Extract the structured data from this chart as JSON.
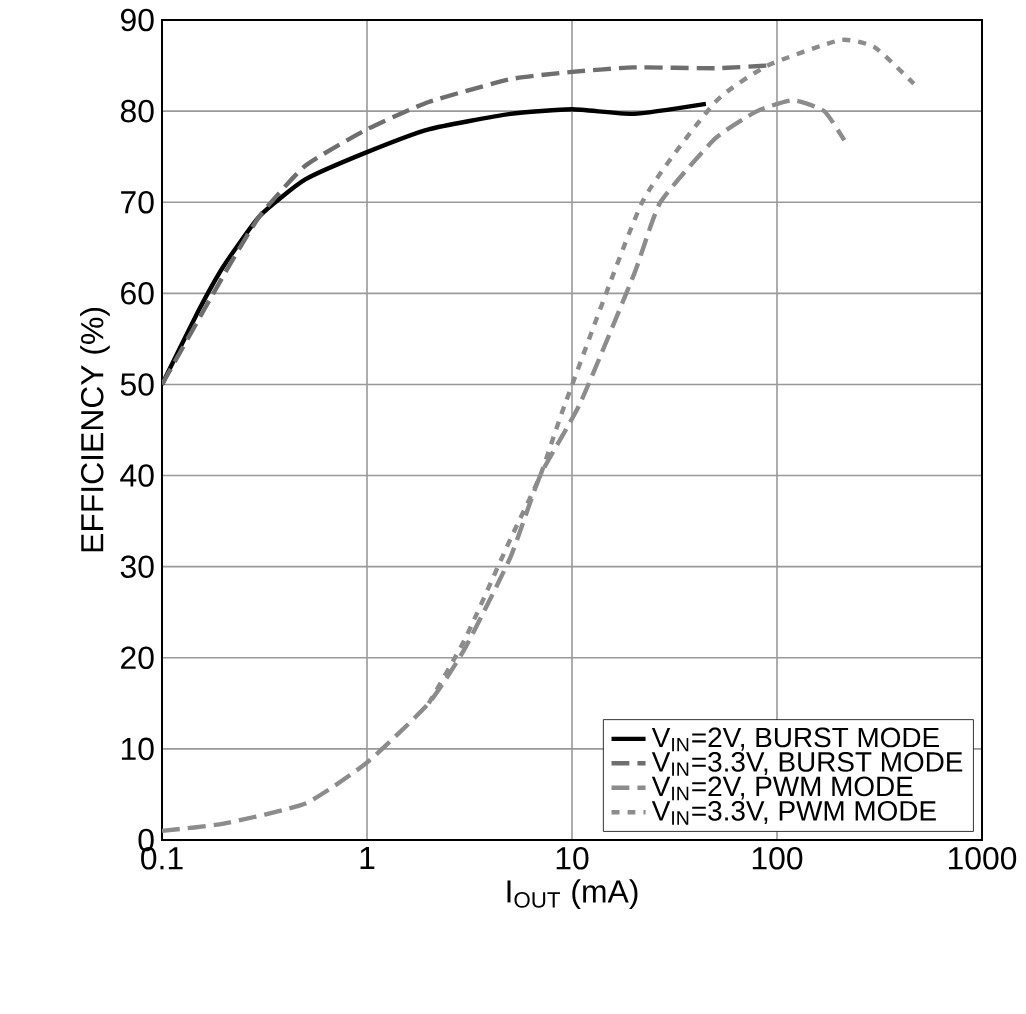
{
  "chart_data": {
    "type": "line",
    "xlabel": "I$_{OUT}$ (mA)",
    "ylabel": "EFFICIENCY (%)",
    "log": "x",
    "grid": true,
    "legend": "bottom right",
    "xlim": [
      0.1,
      1000
    ],
    "xticks": [
      0.1,
      1,
      10,
      100,
      1000
    ],
    "ylim": [
      0,
      90
    ],
    "yticks": [
      0,
      10,
      20,
      30,
      40,
      50,
      60,
      70,
      80,
      90
    ],
    "series": [
      {
        "name": "V$_{IN}$=2V, BURST MODE",
        "color": "#000000",
        "line_style": "solid",
        "x": [
          0.1,
          0.15,
          0.2,
          0.3,
          0.5,
          1,
          2,
          5,
          10,
          20,
          45
        ],
        "values": [
          50,
          58,
          63,
          68.5,
          72.5,
          75.5,
          78,
          79.7,
          80.2,
          79.7,
          80.8
        ]
      },
      {
        "name": "V$_{IN}$=3.3V, BURST MODE",
        "color": "#6e6e6e",
        "line_style": "dashed",
        "x": [
          0.1,
          0.2,
          0.3,
          0.5,
          1,
          2,
          5,
          10,
          20,
          50,
          89
        ],
        "values": [
          50,
          62,
          68.5,
          74,
          78,
          81,
          83.5,
          84.3,
          84.8,
          84.7,
          85
        ]
      },
      {
        "name": "V$_{IN}$=2V, PWM MODE",
        "color": "#8c8c8c",
        "line_style": "dashed",
        "x": [
          0.1,
          0.2,
          0.5,
          1,
          2,
          3,
          5,
          7,
          11,
          20,
          27,
          50,
          80,
          120,
          170,
          213
        ],
        "values": [
          1,
          1.8,
          4,
          8.5,
          15,
          21,
          31,
          40,
          48,
          62,
          70,
          77,
          80,
          81.2,
          80,
          76.8
        ]
      },
      {
        "name": "V$_{IN}$=3.3V, PWM MODE",
        "color": "#8c8c8c",
        "line_style": "dotted",
        "x": [
          2,
          3,
          5,
          7,
          9.3,
          22,
          50,
          90,
          204,
          300,
          465
        ],
        "values": [
          15,
          22,
          33,
          40,
          48,
          70,
          81,
          85,
          87.8,
          87,
          83
        ]
      }
    ]
  }
}
